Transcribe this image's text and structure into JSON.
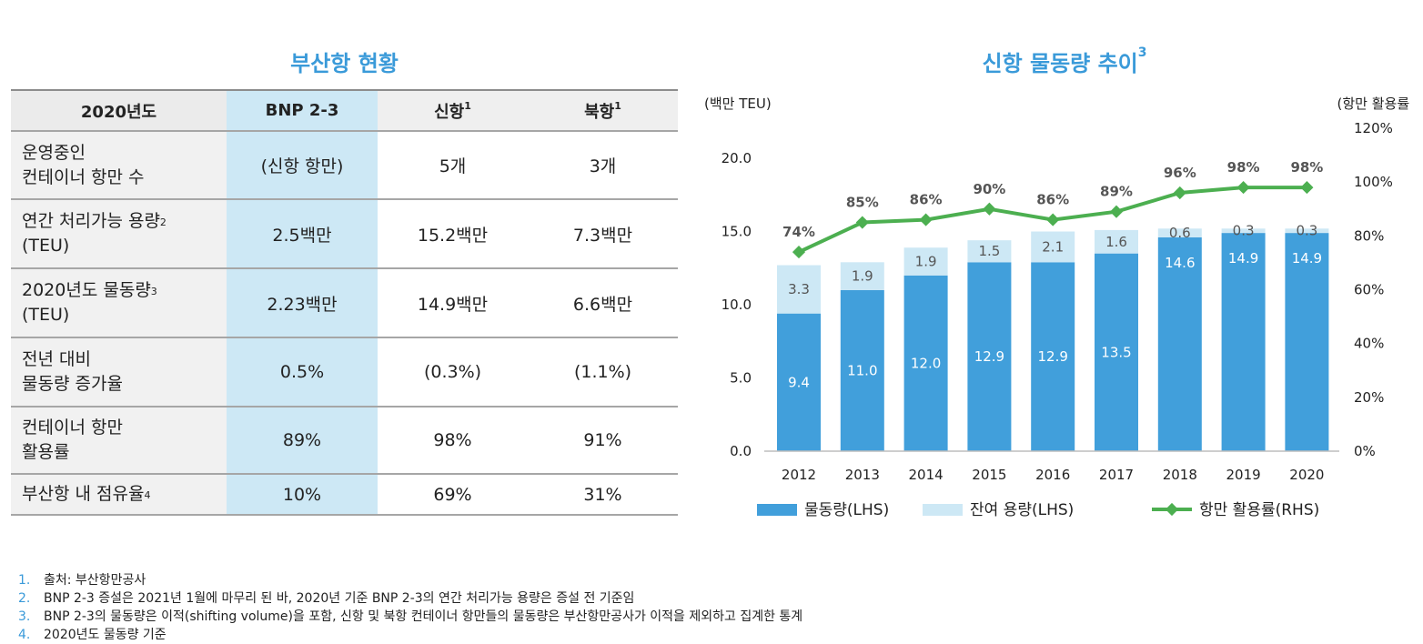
{
  "left": {
    "title": "부산항 현황",
    "headers": [
      {
        "text": "2020년도",
        "sup": ""
      },
      {
        "text": "BNP 2-3",
        "sup": ""
      },
      {
        "text": "신항",
        "sup": "1"
      },
      {
        "text": "북항",
        "sup": "1"
      }
    ],
    "rows": [
      {
        "label1": "운영중인",
        "label2": "컨테이너 항만 수",
        "sup": "",
        "values": [
          "(신항 항만)",
          "5개",
          "3개"
        ]
      },
      {
        "label1": "연간 처리가능 용량",
        "label2": "(TEU)",
        "sup": "2",
        "values": [
          "2.5백만",
          "15.2백만",
          "7.3백만"
        ]
      },
      {
        "label1": "2020년도 물동량",
        "label2": "(TEU)",
        "sup": "3",
        "values": [
          "2.23백만",
          "14.9백만",
          "6.6백만"
        ]
      },
      {
        "label1": "전년 대비",
        "label2": "물동량 증가율",
        "sup": "",
        "values": [
          "0.5%",
          "(0.3%)",
          "(1.1%)"
        ]
      },
      {
        "label1": "컨테이너 항만",
        "label2": "활용률",
        "sup": "",
        "values": [
          "89%",
          "98%",
          "91%"
        ]
      },
      {
        "label1": "부산항 내 점유율",
        "label2": "",
        "sup": "4",
        "values": [
          "10%",
          "69%",
          "31%"
        ]
      }
    ]
  },
  "right": {
    "title": "신항 물동량 추이",
    "title_sup": "3"
  },
  "chart_data": {
    "type": "bar",
    "stacked": true,
    "categories": [
      "2012",
      "2013",
      "2014",
      "2015",
      "2016",
      "2017",
      "2018",
      "2019",
      "2020"
    ],
    "series": [
      {
        "name": "물동량(LHS)",
        "axis": "left",
        "color": "#419fdb",
        "values": [
          9.4,
          11.0,
          12.0,
          12.9,
          12.9,
          13.5,
          14.6,
          14.9,
          14.9
        ],
        "labels": [
          "9.4",
          "11.0",
          "12.0",
          "12.9",
          "12.9",
          "13.5",
          "14.6",
          "14.9",
          "14.9"
        ]
      },
      {
        "name": "잔여 용량(LHS)",
        "axis": "left",
        "color": "#cde8f5",
        "values": [
          3.3,
          1.9,
          1.9,
          1.5,
          2.1,
          1.6,
          0.6,
          0.3,
          0.3
        ],
        "labels": [
          "3.3",
          "1.9",
          "1.9",
          "1.5",
          "2.1",
          "1.6",
          "0.6",
          "0.3",
          "0.3"
        ]
      },
      {
        "name": "항만 활용률(RHS)",
        "axis": "right",
        "type": "line",
        "color": "#4caf50",
        "values": [
          74,
          85,
          86,
          90,
          86,
          89,
          96,
          98,
          98
        ],
        "labels": [
          "74%",
          "85%",
          "86%",
          "90%",
          "86%",
          "89%",
          "96%",
          "98%",
          "98%"
        ]
      }
    ],
    "y_left": {
      "label": "(백만 TEU)",
      "min": 0,
      "max": 20,
      "ticks": [
        "0.0",
        "5.0",
        "10.0",
        "15.0",
        "20.0"
      ]
    },
    "y_right": {
      "label": "(항만 활용률)",
      "min": 0,
      "max": 120,
      "ticks": [
        "0%",
        "20%",
        "40%",
        "60%",
        "80%",
        "100%",
        "120%"
      ]
    },
    "grid": false,
    "legend": "bottom"
  },
  "footnotes": [
    {
      "num": "1.",
      "text": "출처: 부산항만공사"
    },
    {
      "num": "2.",
      "text": "BNP 2-3 증설은 2021년 1월에 마무리 된 바, 2020년 기준 BNP 2-3의 연간 처리가능 용량은 증설 전 기준임"
    },
    {
      "num": "3.",
      "text": "BNP 2-3의 물동량은 이적(shifting volume)을 포함, 신항 및 북항 컨테이너 항만들의 물동량은 부산항만공사가 이적을 제외하고 집계한 통계"
    },
    {
      "num": "4.",
      "text": "2020년도 물동량 기준"
    }
  ]
}
